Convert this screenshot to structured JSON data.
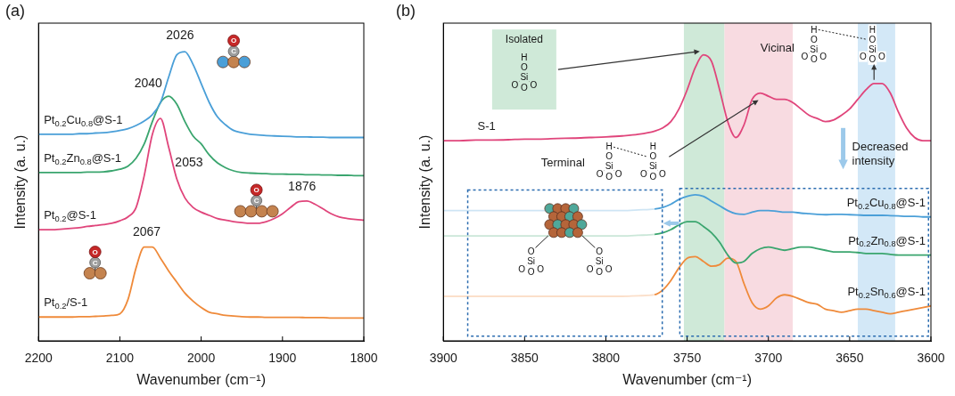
{
  "chart_data": [
    {
      "panel": "(a)",
      "type": "line",
      "x_label": "Wavenumber (cm⁻¹)",
      "y_label": "Intensity (a. u.)",
      "x": [
        2200,
        2190,
        2180,
        2170,
        2160,
        2150,
        2140,
        2130,
        2120,
        2110,
        2100,
        2090,
        2080,
        2070,
        2060,
        2050,
        2040,
        2030,
        2020,
        2010,
        2000,
        1990,
        1980,
        1970,
        1960,
        1950,
        1940,
        1930,
        1920,
        1910,
        1900,
        1890,
        1880,
        1870,
        1860,
        1850,
        1840,
        1830,
        1820,
        1810,
        1800
      ],
      "xlim": [
        2200,
        1800
      ],
      "xticks": [
        2200,
        2100,
        2000,
        1900,
        1800
      ],
      "ylim": [
        0,
        10
      ],
      "yticks": [],
      "tick_labels": "x",
      "grid": false,
      "series": [
        {
          "name": "Pt0.2Cu0.8@S-1",
          "color": "#4a9fd8",
          "values": [
            6.5,
            6.5,
            6.5,
            6.5,
            6.5,
            6.52,
            6.52,
            6.54,
            6.55,
            6.58,
            6.62,
            6.68,
            6.78,
            6.92,
            7.12,
            7.5,
            8.3,
            9.0,
            9.1,
            8.7,
            8.1,
            7.5,
            7.05,
            6.8,
            6.62,
            6.55,
            6.5,
            6.48,
            6.46,
            6.45,
            6.44,
            6.43,
            6.42,
            6.42,
            6.41,
            6.41,
            6.4,
            6.4,
            6.4,
            6.4,
            6.4
          ]
        },
        {
          "name": "Pt0.2Zn0.8@S-1",
          "color": "#3aa56e",
          "values": [
            5.3,
            5.3,
            5.3,
            5.3,
            5.3,
            5.3,
            5.31,
            5.31,
            5.32,
            5.35,
            5.4,
            5.5,
            5.75,
            6.2,
            6.9,
            7.5,
            7.7,
            7.45,
            6.9,
            6.45,
            6.2,
            5.85,
            5.6,
            5.45,
            5.35,
            5.3,
            5.28,
            5.27,
            5.26,
            5.25,
            5.25,
            5.24,
            5.24,
            5.23,
            5.23,
            5.22,
            5.22,
            5.21,
            5.21,
            5.2,
            5.2
          ]
        },
        {
          "name": "Pt0.2@S-1",
          "color": "#e0457b",
          "values": [
            3.5,
            3.5,
            3.5,
            3.52,
            3.54,
            3.56,
            3.6,
            3.63,
            3.66,
            3.7,
            3.78,
            3.9,
            4.2,
            5.2,
            6.5,
            7.0,
            6.1,
            5.1,
            4.5,
            4.2,
            4.05,
            3.95,
            3.85,
            3.8,
            3.75,
            3.72,
            3.7,
            3.7,
            3.75,
            3.85,
            4.0,
            4.2,
            4.38,
            4.4,
            4.3,
            4.15,
            4.0,
            3.9,
            3.85,
            3.82,
            3.8
          ]
        },
        {
          "name": "Pt0.2/S-1",
          "color": "#ef8a3a",
          "values": [
            0.75,
            0.75,
            0.75,
            0.75,
            0.75,
            0.76,
            0.76,
            0.77,
            0.78,
            0.8,
            0.85,
            1.3,
            2.3,
            2.95,
            2.95,
            2.6,
            2.2,
            1.85,
            1.5,
            1.25,
            1.05,
            0.9,
            0.85,
            0.8,
            0.78,
            0.76,
            0.75,
            0.75,
            0.74,
            0.74,
            0.74,
            0.74,
            0.74,
            0.73,
            0.73,
            0.73,
            0.72,
            0.72,
            0.72,
            0.72,
            0.72
          ]
        }
      ],
      "annotations": [
        {
          "text": "2026",
          "x": 2026,
          "y": 9.6
        },
        {
          "text": "2040",
          "x": 2065,
          "y": 8.1
        },
        {
          "text": "2053",
          "x": 2015,
          "y": 5.6
        },
        {
          "text": "1876",
          "x": 1876,
          "y": 4.85
        },
        {
          "text": "2067",
          "x": 2067,
          "y": 3.4
        }
      ],
      "co_icons": [
        [
          "O",
          "C"
        ],
        [
          "O",
          "C"
        ],
        [
          "O",
          "C"
        ]
      ]
    },
    {
      "panel": "(b)",
      "type": "line",
      "x_label": "Wavenumber (cm⁻¹)",
      "y_label": "Intensity (a. u.)",
      "x": [
        3900,
        3890,
        3880,
        3870,
        3860,
        3850,
        3840,
        3830,
        3820,
        3810,
        3800,
        3790,
        3780,
        3770,
        3765,
        3760,
        3755,
        3750,
        3745,
        3740,
        3735,
        3730,
        3725,
        3720,
        3715,
        3710,
        3705,
        3700,
        3695,
        3690,
        3685,
        3680,
        3675,
        3670,
        3665,
        3660,
        3655,
        3650,
        3645,
        3640,
        3635,
        3630,
        3625,
        3620,
        3615,
        3610,
        3605,
        3600
      ],
      "xlim": [
        3900,
        3600
      ],
      "xticks": [
        3900,
        3850,
        3800,
        3750,
        3700,
        3650,
        3600
      ],
      "ylim": [
        0,
        10
      ],
      "yticks": [],
      "tick_labels": "x",
      "grid": false,
      "bands": [
        {
          "from": 3752,
          "to": 3727,
          "color": "#cfe9d8"
        },
        {
          "from": 3727,
          "to": 3685,
          "color": "#f8dbe1"
        },
        {
          "from": 3645,
          "to": 3622,
          "color": "#d3e8f7"
        }
      ],
      "series": [
        {
          "name": "S-1",
          "color": "#e0457b",
          "values": [
            6.3,
            6.3,
            6.32,
            6.32,
            6.33,
            6.35,
            6.35,
            6.37,
            6.38,
            6.4,
            6.42,
            6.45,
            6.5,
            6.6,
            6.7,
            6.9,
            7.3,
            7.9,
            8.6,
            9.0,
            8.8,
            7.9,
            6.9,
            6.4,
            6.8,
            7.6,
            7.8,
            7.7,
            7.6,
            7.6,
            7.5,
            7.3,
            7.1,
            7.0,
            6.9,
            6.95,
            7.1,
            7.3,
            7.6,
            7.9,
            8.1,
            8.1,
            7.8,
            7.2,
            6.7,
            6.4,
            6.3,
            6.3
          ]
        },
        {
          "name": "Pt0.2Cu0.8@S-1",
          "color": "#4a9fd8",
          "values": [
            4.1,
            4.1,
            4.1,
            4.1,
            4.1,
            4.1,
            4.1,
            4.1,
            4.1,
            4.1,
            4.1,
            4.1,
            4.12,
            4.15,
            4.2,
            4.3,
            4.45,
            4.55,
            4.6,
            4.55,
            4.4,
            4.25,
            4.1,
            4.0,
            3.98,
            4.05,
            4.1,
            4.1,
            4.08,
            4.05,
            4.05,
            4.02,
            4.0,
            3.98,
            3.97,
            3.98,
            3.98,
            3.97,
            3.96,
            3.95,
            3.95,
            3.95,
            3.94,
            3.93,
            3.92,
            3.92,
            3.9,
            3.9
          ]
        },
        {
          "name": "Pt0.2Zn0.8@S-1",
          "color": "#3aa56e",
          "values": [
            3.3,
            3.3,
            3.3,
            3.3,
            3.3,
            3.3,
            3.3,
            3.3,
            3.3,
            3.3,
            3.3,
            3.3,
            3.32,
            3.35,
            3.4,
            3.5,
            3.65,
            3.75,
            3.75,
            3.6,
            3.4,
            3.1,
            2.7,
            2.45,
            2.5,
            2.75,
            2.9,
            2.95,
            2.9,
            2.85,
            2.9,
            2.95,
            2.95,
            2.9,
            2.85,
            2.8,
            2.8,
            2.8,
            2.78,
            2.75,
            2.75,
            2.75,
            2.72,
            2.7,
            2.7,
            2.7,
            2.7,
            2.7
          ]
        },
        {
          "name": "Pt0.2Sn0.6@S-1",
          "color": "#ef8a3a",
          "values": [
            1.4,
            1.4,
            1.4,
            1.4,
            1.4,
            1.4,
            1.4,
            1.4,
            1.4,
            1.4,
            1.4,
            1.4,
            1.42,
            1.45,
            1.6,
            1.9,
            2.3,
            2.6,
            2.65,
            2.5,
            2.35,
            2.4,
            2.6,
            2.5,
            1.8,
            1.2,
            1.0,
            1.1,
            1.35,
            1.45,
            1.4,
            1.3,
            1.2,
            1.15,
            1.0,
            0.95,
            0.9,
            0.95,
            1.0,
            1.0,
            0.95,
            0.9,
            0.85,
            0.9,
            0.95,
            1.0,
            1.05,
            1.1
          ]
        }
      ],
      "structures": {
        "isolated": {
          "label": "Isolated",
          "units": [
            [
              "H",
              "O",
              "Si",
              "O",
              "O",
              "O"
            ]
          ]
        },
        "terminal": {
          "label": "Terminal",
          "units": [
            [
              "H",
              "O",
              "Si",
              "O",
              "O",
              "O"
            ],
            [
              "H",
              "O",
              "Si",
              "O",
              "O",
              "O"
            ]
          ]
        },
        "vicinal": {
          "label": "Vicinal",
          "units": [
            [
              "H",
              "O",
              "Si",
              "O",
              "O",
              "O"
            ],
            [
              "H",
              "O",
              "Si",
              "O",
              "O",
              "O"
            ]
          ]
        },
        "anchored": {
          "units": [
            [
              "O",
              "Si",
              "O",
              "O",
              "O"
            ],
            [
              "O",
              "Si",
              "O",
              "O",
              "O"
            ]
          ]
        }
      },
      "callout": "Decreased intensity"
    }
  ]
}
